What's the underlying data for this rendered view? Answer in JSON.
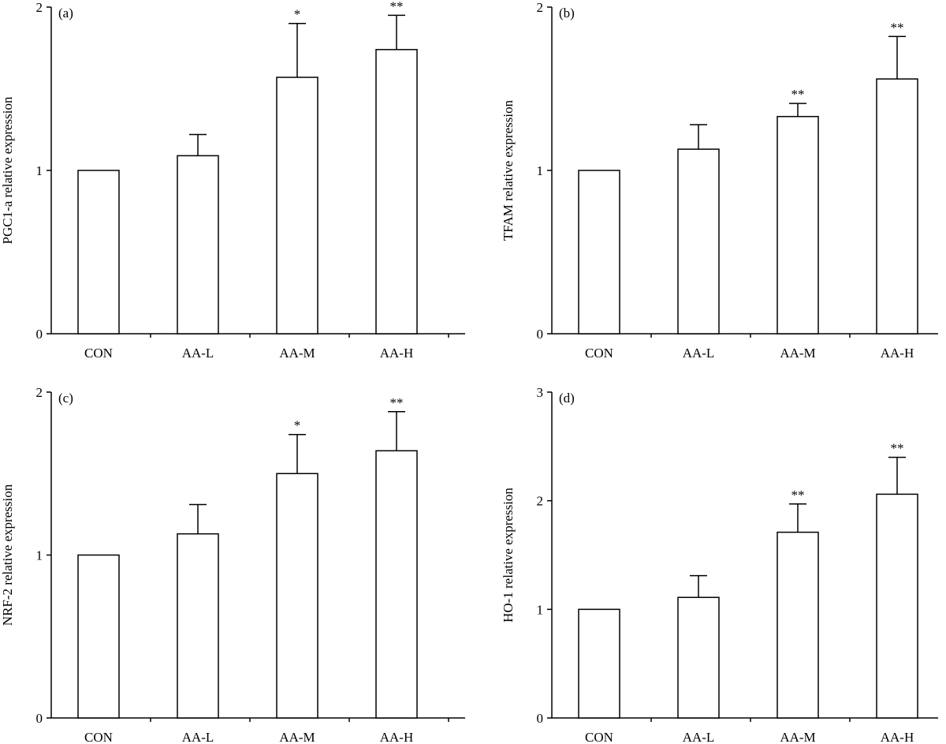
{
  "chart_data": [
    {
      "type": "bar",
      "label": "(a)",
      "ylabel": "PGC1-a relative expression",
      "categories": [
        "CON",
        "AA-L",
        "AA-M",
        "AA-H"
      ],
      "values": [
        1.0,
        1.09,
        1.57,
        1.74
      ],
      "errors": [
        null,
        0.13,
        0.33,
        0.21
      ],
      "significance": [
        null,
        null,
        "*",
        "**"
      ],
      "ylim": [
        0,
        2
      ],
      "yticks": [
        0,
        1,
        2
      ],
      "color": "#ffffff"
    },
    {
      "type": "bar",
      "label": "(b)",
      "ylabel": "TFAM relative expression",
      "categories": [
        "CON",
        "AA-L",
        "AA-M",
        "AA-H"
      ],
      "values": [
        1.0,
        1.13,
        1.33,
        1.56
      ],
      "errors": [
        null,
        0.15,
        0.08,
        0.26
      ],
      "significance": [
        null,
        null,
        "**",
        "**"
      ],
      "ylim": [
        0,
        2
      ],
      "yticks": [
        0,
        1,
        2
      ],
      "color": "#ffffff"
    },
    {
      "type": "bar",
      "label": "(c)",
      "ylabel": "NRF-2 relative expression",
      "categories": [
        "CON",
        "AA-L",
        "AA-M",
        "AA-H"
      ],
      "values": [
        1.0,
        1.13,
        1.5,
        1.64
      ],
      "errors": [
        null,
        0.18,
        0.24,
        0.24
      ],
      "significance": [
        null,
        null,
        "*",
        "**"
      ],
      "ylim": [
        0,
        2
      ],
      "yticks": [
        0,
        1,
        2
      ],
      "color": "#ffffff"
    },
    {
      "type": "bar",
      "label": "(d)",
      "ylabel": "HO-1 relative expression",
      "categories": [
        "CON",
        "AA-L",
        "AA-M",
        "AA-H"
      ],
      "values": [
        1.0,
        1.11,
        1.71,
        2.06
      ],
      "errors": [
        null,
        0.2,
        0.26,
        0.34
      ],
      "significance": [
        null,
        null,
        "**",
        "**"
      ],
      "ylim": [
        0,
        3
      ],
      "yticks": [
        0,
        1,
        2,
        3
      ],
      "color": "#ffffff"
    }
  ]
}
